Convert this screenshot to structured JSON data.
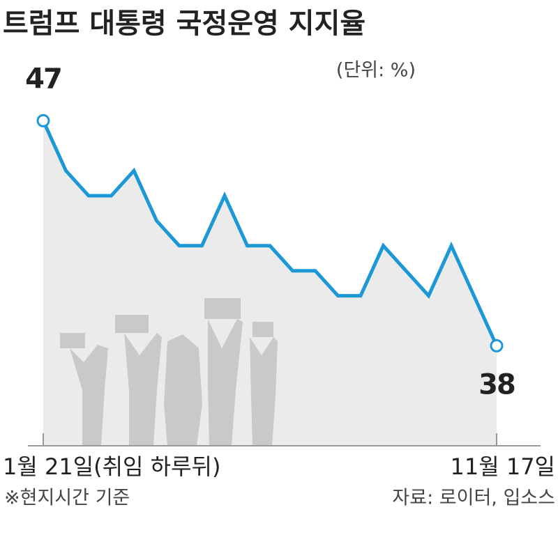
{
  "chart_data": {
    "type": "line",
    "title": "트럼프 대통령 국정운영 지지율",
    "unit": "(단위: %)",
    "categories": [
      "1월 21일(취임 하루뒤)",
      null,
      null,
      null,
      null,
      null,
      null,
      null,
      null,
      null,
      null,
      null,
      null,
      null,
      null,
      null,
      null,
      null,
      null,
      null,
      "11월 17일"
    ],
    "series": [
      {
        "name": "지지율",
        "color": "#1b98d5",
        "values": [
          47,
          45,
          44,
          44,
          45,
          43,
          42,
          42,
          44,
          42,
          42,
          41,
          41,
          40,
          40,
          42,
          41,
          40,
          42,
          40,
          38
        ]
      }
    ],
    "data_labels": "ends",
    "area_color": "#ebebeb",
    "ylim": [
      34,
      48
    ],
    "note": "※현지시간 기준",
    "source": "자료: 로이터, 입소스"
  }
}
